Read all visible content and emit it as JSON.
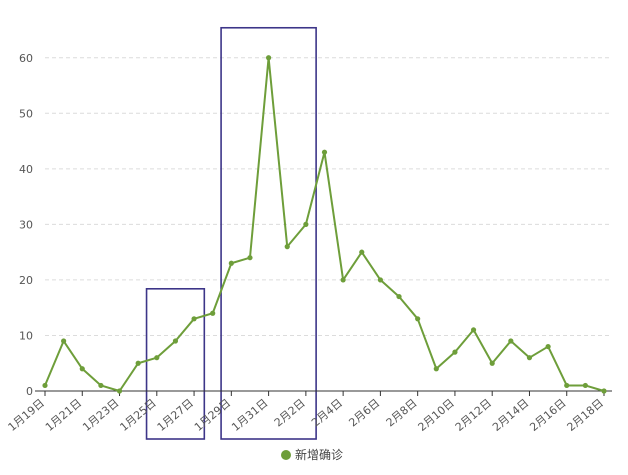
{
  "chart_data": {
    "type": "line",
    "x": [
      "1月19日",
      "1月20日",
      "1月21日",
      "1月22日",
      "1月23日",
      "1月24日",
      "1月25日",
      "1月26日",
      "1月27日",
      "1月28日",
      "1月29日",
      "1月30日",
      "1月31日",
      "2月1日",
      "2月2日",
      "2月3日",
      "2月4日",
      "2月5日",
      "2月6日",
      "2月7日",
      "2月8日",
      "2月9日",
      "2月10日",
      "2月11日",
      "2月12日",
      "2月13日",
      "2月14日",
      "2月15日",
      "2月16日",
      "2月17日",
      "2月18日"
    ],
    "x_tick_labels": [
      "1月19日",
      "1月21日",
      "1月23日",
      "1月25日",
      "1月27日",
      "1月29日",
      "1月31日",
      "2月2日",
      "2月4日",
      "2月6日",
      "2月8日",
      "2月10日",
      "2月12日",
      "2月14日",
      "2月16日",
      "2月18日"
    ],
    "series": [
      {
        "name": "新增确诊",
        "color": "#6e9e3a",
        "values": [
          1,
          9,
          4,
          1,
          0,
          5,
          6,
          9,
          13,
          14,
          23,
          24,
          60,
          26,
          30,
          43,
          20,
          25,
          20,
          17,
          13,
          4,
          7,
          11,
          5,
          9,
          6,
          8,
          1,
          1,
          0
        ]
      }
    ],
    "ylim": [
      0,
      65
    ],
    "yticks": [
      0,
      10,
      20,
      30,
      40,
      50,
      60
    ],
    "grid": true,
    "legend_position": "bottom-center",
    "highlights": [
      {
        "from": "1月25日",
        "to": "1月27日",
        "color": "#3d3588"
      },
      {
        "from": "1月29日",
        "to": "2月2日",
        "color": "#3d3588"
      }
    ]
  }
}
